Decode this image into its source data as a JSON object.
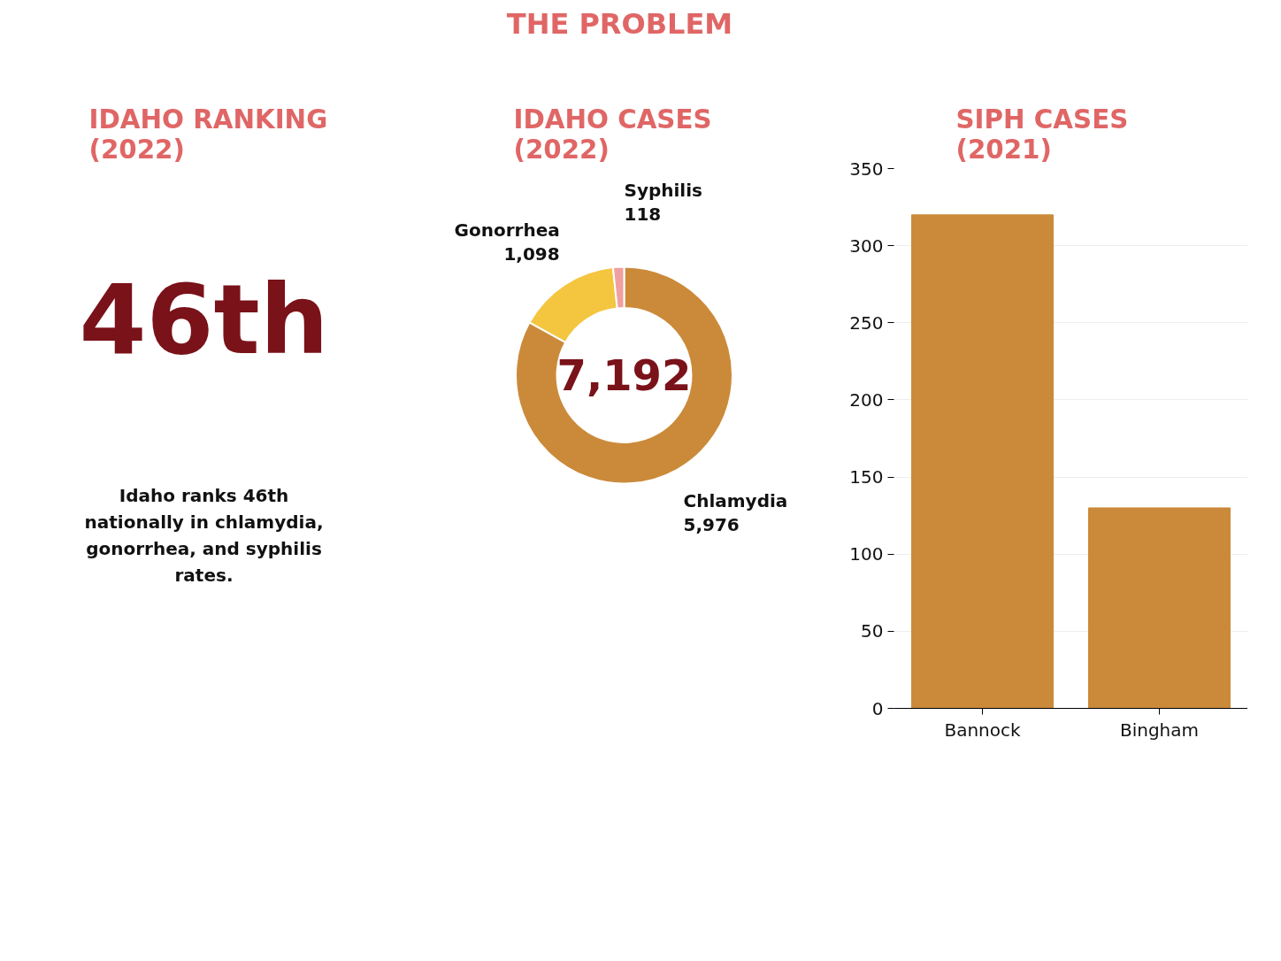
{
  "chart_data": [
    {
      "type": "other",
      "title": "THE PROBLEM"
    },
    {
      "type": "other",
      "title": "IDAHO RANKING\n(2022)",
      "annotations": [
        "46th",
        "Idaho ranks 46th\nnationally in chlamydia,\ngonorrhea, and syphilis\nrates."
      ]
    },
    {
      "type": "donut",
      "title": "IDAHO CASES\n(2022)",
      "categories": [
        "Chlamydia",
        "Gonorrhea",
        "Syphilis"
      ],
      "values": [
        5976,
        1098,
        118
      ],
      "colors": [
        "#cb8a3a",
        "#f4c53f",
        "#f0a0a0"
      ],
      "value_labels": [
        "5,976",
        "1,098",
        "118"
      ],
      "annotations": [
        "7,192"
      ]
    },
    {
      "type": "bar",
      "title": "SIPH CASES\n(2021)",
      "categories": [
        "Bannock",
        "Bingham"
      ],
      "values": [
        320,
        130
      ],
      "color": "#cb8a3a",
      "ylim": [
        0,
        350
      ],
      "yticks": [
        0,
        50,
        100,
        150,
        200,
        250,
        300,
        350
      ],
      "grid": "y"
    }
  ]
}
